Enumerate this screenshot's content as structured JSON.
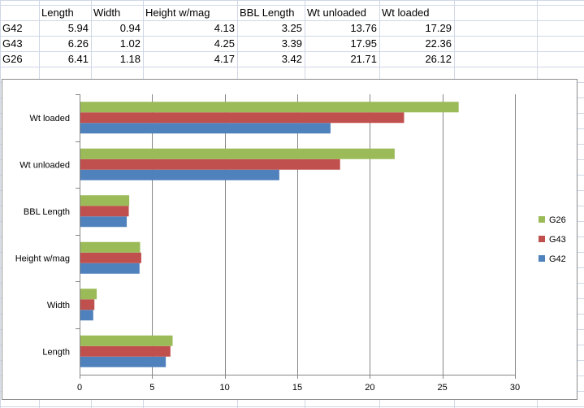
{
  "sheet": {
    "headers": [
      "Length",
      "Width",
      "Height w/mag",
      "BBL Length",
      "Wt unloaded",
      "Wt loaded"
    ],
    "rows": [
      {
        "label": "G42",
        "values": [
          "5.94",
          "0.94",
          "4.13",
          "3.25",
          "13.76",
          "17.29"
        ]
      },
      {
        "label": "G43",
        "values": [
          "6.26",
          "1.02",
          "4.25",
          "3.39",
          "17.95",
          "22.36"
        ]
      },
      {
        "label": "G26",
        "values": [
          "6.41",
          "1.18",
          "4.17",
          "3.42",
          "21.71",
          "26.12"
        ]
      }
    ]
  },
  "chart_data": {
    "type": "bar",
    "orientation": "horizontal",
    "categories": [
      "Length",
      "Width",
      "Height w/mag",
      "BBL Length",
      "Wt unloaded",
      "Wt loaded"
    ],
    "series": [
      {
        "name": "G42",
        "color": "#4f81bd",
        "values": [
          5.94,
          0.94,
          4.13,
          3.25,
          13.76,
          17.29
        ]
      },
      {
        "name": "G43",
        "color": "#c0504d",
        "values": [
          6.26,
          1.02,
          4.25,
          3.39,
          17.95,
          22.36
        ]
      },
      {
        "name": "G26",
        "color": "#9bbb59",
        "values": [
          6.41,
          1.18,
          4.17,
          3.42,
          21.71,
          26.12
        ]
      }
    ],
    "xlim": [
      0,
      30
    ],
    "xticks": [
      0,
      5,
      10,
      15,
      20,
      25,
      30
    ],
    "grid": true,
    "legend": "right",
    "legend_order": [
      "G26",
      "G43",
      "G42"
    ],
    "title": "",
    "xlabel": "",
    "ylabel": ""
  }
}
